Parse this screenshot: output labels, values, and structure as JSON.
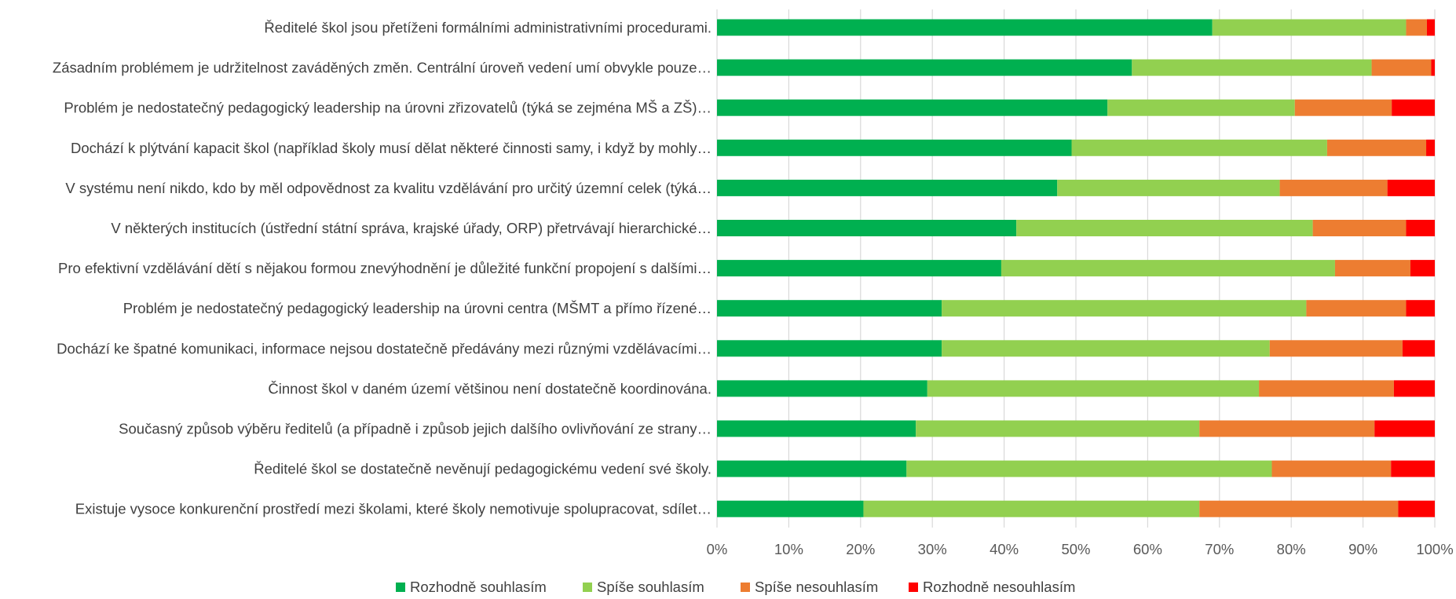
{
  "chart_data": {
    "type": "bar",
    "orientation": "horizontal",
    "stacked": "percent",
    "title": "",
    "xlabel": "",
    "ylabel": "",
    "xlim": [
      0,
      100
    ],
    "grid": true,
    "legend_position": "bottom",
    "x_ticks": [
      "0%",
      "10%",
      "20%",
      "30%",
      "40%",
      "50%",
      "60%",
      "70%",
      "80%",
      "90%",
      "100%"
    ],
    "categories": [
      "Ředitelé škol jsou přetíženi formálními administrativními procedurami.",
      "Zásadním problémem je udržitelnost zaváděných změn. Centrální úroveň vedení umí obvykle pouze…",
      "Problém je nedostatečný pedagogický leadership na úrovni zřizovatelů (týká se zejména MŠ a ZŠ)…",
      "Dochází k plýtvání kapacit škol (například školy musí dělat některé činnosti samy, i když by mohly…",
      "V systému není nikdo, kdo by měl odpovědnost za kvalitu vzdělávání pro určitý územní celek (týká…",
      "V některých institucích (ústřední státní správa, krajské úřady, ORP) přetrvávají hierarchické…",
      "Pro efektivní vzdělávání dětí s nějakou formou znevýhodnění je důležité funkční propojení s dalšími…",
      "Problém je nedostatečný pedagogický leadership na úrovni centra (MŠMT a přímo řízené…",
      "Dochází ke špatné komunikaci, informace nejsou dostatečně předávány mezi různými vzdělávacími…",
      "Činnost škol v daném území většinou není dostatečně koordinována.",
      "Současný způsob výběru ředitelů (a případně i způsob jejich dalšího ovlivňování ze strany…",
      "Ředitelé škol se dostatečně nevěnují pedagogickému vedení své školy.",
      "Existuje vysoce konkurenční prostředí mezi školami, které školy nemotivuje spolupracovat, sdílet…"
    ],
    "series": [
      {
        "name": "Rozhodně souhlasím",
        "color": "#00b050",
        "values": [
          69.0,
          57.8,
          54.4,
          49.4,
          47.4,
          41.7,
          39.6,
          31.3,
          31.3,
          29.3,
          27.7,
          26.4,
          20.4
        ]
      },
      {
        "name": "Spíše souhlasím",
        "color": "#92d050",
        "values": [
          27.0,
          33.4,
          26.1,
          35.6,
          31.0,
          41.3,
          46.5,
          50.8,
          45.7,
          46.2,
          39.5,
          50.9,
          46.8
        ]
      },
      {
        "name": "Spíše nesouhlasím",
        "color": "#ed7d31",
        "values": [
          2.9,
          8.3,
          13.5,
          13.8,
          15.0,
          13.0,
          10.5,
          13.9,
          18.5,
          18.8,
          24.4,
          16.6,
          27.7
        ]
      },
      {
        "name": "Rozhodně nesouhlasím",
        "color": "#ff0000",
        "values": [
          1.1,
          0.5,
          6.0,
          1.2,
          6.6,
          4.0,
          3.4,
          4.0,
          4.5,
          5.7,
          8.4,
          6.1,
          5.1
        ]
      }
    ]
  }
}
